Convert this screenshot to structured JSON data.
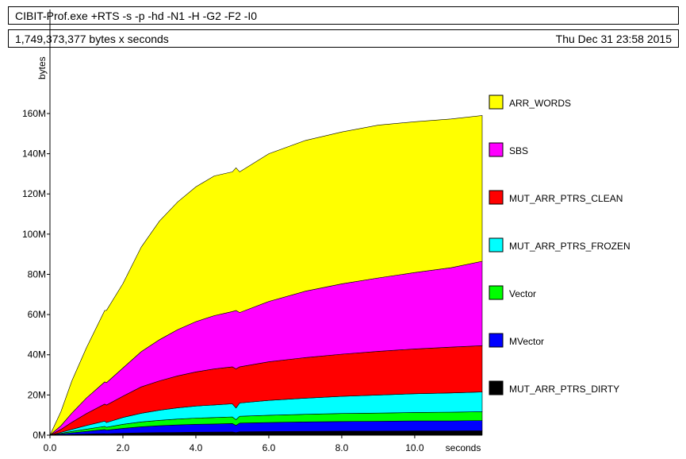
{
  "header": {
    "program": "CIBIT-Prof.exe +RTS -s -p -hd -N1 -H -G2 -F2 -I0",
    "total": "1,749,373,377 bytes x seconds",
    "date": "Thu Dec 31 23:58 2015"
  },
  "chart_data": {
    "type": "area",
    "stacked": true,
    "xlabel": "seconds",
    "ylabel": "bytes",
    "xlim": [
      0,
      11.85
    ],
    "ylim": [
      0,
      190
    ],
    "x_ticks": [
      0,
      2,
      4,
      6,
      8,
      10
    ],
    "x_tick_labels": [
      "0.0",
      "2.0",
      "4.0",
      "6.0",
      "8.0",
      "10.0"
    ],
    "y_ticks": [
      0,
      20,
      40,
      60,
      80,
      100,
      120,
      140,
      160
    ],
    "y_tick_labels": [
      "0M",
      "20M",
      "40M",
      "60M",
      "80M",
      "100M",
      "120M",
      "140M",
      "160M"
    ],
    "legend_position": "right",
    "x": [
      0,
      0.3,
      0.6,
      1.0,
      1.5,
      1.55,
      2.0,
      2.5,
      3.0,
      3.5,
      4.0,
      4.5,
      5.0,
      5.1,
      5.2,
      6.0,
      7.0,
      8.0,
      9.0,
      10.0,
      11.0,
      11.85
    ],
    "series": [
      {
        "name": "MUT_ARR_PTRS_DIRTY",
        "color": "#000000",
        "values": [
          0,
          0.2,
          0.4,
          0.6,
          0.8,
          0.7,
          1.0,
          1.2,
          1.3,
          1.4,
          1.5,
          1.55,
          1.6,
          1.3,
          1.7,
          1.8,
          1.9,
          2.0,
          2.0,
          2.1,
          2.1,
          2.2
        ]
      },
      {
        "name": "MVector",
        "color": "#0000ff",
        "values": [
          0,
          0.4,
          0.8,
          1.3,
          2.0,
          1.8,
          2.4,
          3.0,
          3.4,
          3.7,
          3.9,
          4.0,
          4.2,
          3.5,
          4.3,
          4.5,
          4.7,
          4.8,
          4.9,
          5.0,
          5.0,
          5.1
        ]
      },
      {
        "name": "Vector",
        "color": "#00ff00",
        "values": [
          0,
          0.3,
          0.7,
          1.1,
          1.6,
          1.4,
          2.0,
          2.4,
          2.7,
          2.9,
          3.1,
          3.2,
          3.3,
          2.9,
          3.4,
          3.6,
          3.8,
          4.0,
          4.1,
          4.2,
          4.3,
          4.4
        ]
      },
      {
        "name": "MUT_ARR_PTRS_FROZEN",
        "color": "#00ffff",
        "values": [
          0,
          0.5,
          1.0,
          1.8,
          2.6,
          2.4,
          3.4,
          4.3,
          5.0,
          5.6,
          6.0,
          6.3,
          6.5,
          5.8,
          6.6,
          7.4,
          8.0,
          8.5,
          9.0,
          9.3,
          9.6,
          9.8
        ]
      },
      {
        "name": "MUT_ARR_PTRS_CLEAN",
        "color": "#ff0000",
        "values": [
          0,
          1.5,
          3.5,
          6.0,
          8.5,
          8.7,
          10.6,
          13.1,
          14.6,
          15.9,
          17.0,
          17.9,
          18.4,
          19.5,
          18.0,
          19.2,
          20.2,
          21.0,
          21.7,
          22.3,
          22.8,
          23.0
        ]
      },
      {
        "name": "SBS",
        "color": "#ff00ff",
        "values": [
          0,
          1.8,
          4.6,
          7.7,
          11.0,
          11.1,
          14.0,
          17.5,
          20.5,
          23.0,
          25.0,
          26.5,
          27.5,
          29.0,
          27.0,
          30.0,
          33.0,
          35.0,
          36.5,
          38.0,
          39.5,
          42.0
        ]
      },
      {
        "name": "ARR_WORDS",
        "color": "#ffff00",
        "values": [
          0,
          7.0,
          16.0,
          25.0,
          35.5,
          36.0,
          42.0,
          52.0,
          59.0,
          63.5,
          67.0,
          69.5,
          69.5,
          71.0,
          70.0,
          73.5,
          75.0,
          75.5,
          76.0,
          75.0,
          74.0,
          72.5
        ]
      }
    ],
    "legend_order": [
      "ARR_WORDS",
      "SBS",
      "MUT_ARR_PTRS_CLEAN",
      "MUT_ARR_PTRS_FROZEN",
      "Vector",
      "MVector",
      "MUT_ARR_PTRS_DIRTY"
    ]
  }
}
